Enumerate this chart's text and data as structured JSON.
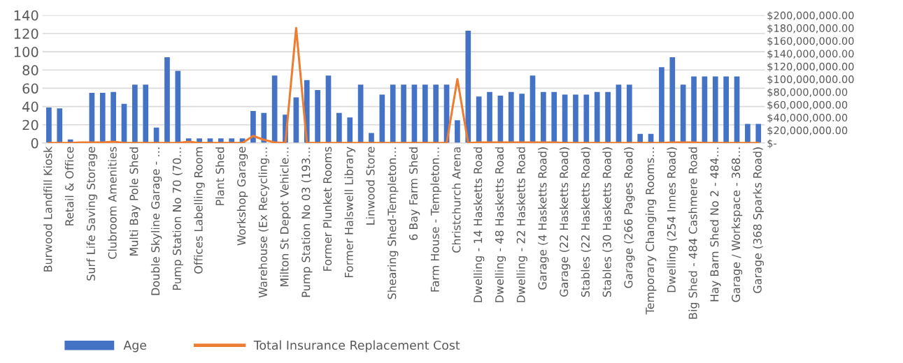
{
  "chart_data": {
    "type": "bar",
    "categories": [
      "Burwood Landfill Kiosk",
      null,
      "Retail & Office",
      null,
      "Surf Life Saving Storage",
      null,
      "Clubroom Amenities",
      null,
      "Multi Bay Pole Shed",
      null,
      "Double Skyline Garage - …",
      null,
      "Pump Station No 70 (70…",
      null,
      "Offices Labelling Room",
      null,
      "Plant Shed",
      null,
      "Workshop Garage",
      null,
      "Warehouse (Ex Recycling…",
      null,
      "Milton St Depot Vehicle…",
      null,
      "Pump Station No 03 (193…",
      null,
      "Former Plunket Rooms",
      null,
      "Former Halswell Library",
      null,
      "Linwood Store",
      null,
      "Shearing Shed-Templeton…",
      null,
      "6 Bay Farm Shed",
      null,
      "Farm House - Templeton…",
      null,
      "Christchurch Arena",
      null,
      "Dwelling - 14 Hasketts Road",
      null,
      "Dwelling - 48 Hasketts Road",
      null,
      "Dwelling - 22 Hasketts Road",
      null,
      "Garage (4 Hasketts Road)",
      null,
      "Garage (22 Hasketts Road)",
      null,
      "Stables (22 Hasketts Road)",
      null,
      "Stables (30 Hasketts Road)",
      null,
      "Garage (266 Pages Road)",
      null,
      "Temporary Changing Rooms…",
      null,
      "Dwelling (254 Innes Road)",
      null,
      "Big Shed - 484 Cashmere Road",
      null,
      "Hay Barn Shed No 2 - 484…",
      null,
      "Garage / Workspace - 368…",
      null,
      "Garage (368 Sparks Road)"
    ],
    "series": [
      {
        "name": "Age",
        "color": "#4472c4",
        "values": [
          39,
          38,
          4,
          null,
          55,
          55,
          56,
          43,
          64,
          64,
          17,
          94,
          79,
          5,
          5,
          5,
          5,
          5,
          5,
          35,
          33,
          74,
          31,
          50,
          69,
          58,
          74,
          33,
          28,
          64,
          11,
          53,
          64,
          64,
          64,
          64,
          64,
          64,
          25,
          123,
          51,
          56,
          52,
          56,
          54,
          74,
          56,
          56,
          53,
          53,
          53,
          56,
          56,
          64,
          64,
          10,
          10,
          83,
          94,
          64,
          73,
          73,
          73,
          73,
          73,
          21,
          21
        ]
      },
      {
        "name": "Total Insurance Replacement Cost",
        "type": "line",
        "axis": "y2",
        "color": "#ed7d31",
        "values": [
          0,
          0,
          0,
          1000000,
          1000000,
          1000000,
          2000000,
          0,
          0,
          0,
          0,
          0,
          0,
          2000000,
          0,
          0,
          0,
          0,
          0,
          11000000,
          5000000,
          1000000,
          0,
          180000000,
          0,
          0,
          0,
          0,
          0,
          0,
          0,
          0,
          0,
          0,
          0,
          0,
          0,
          0,
          100000000,
          0,
          1000000,
          1000000,
          1000000,
          1000000,
          1000000,
          1000000,
          1000000,
          1000000,
          0,
          0,
          0,
          0,
          0,
          0,
          0,
          0,
          0,
          0,
          1000000,
          1000000,
          1000000,
          0,
          0,
          0,
          0,
          0,
          0
        ]
      }
    ],
    "ylim": [
      0,
      140
    ],
    "yticks": [
      0,
      20,
      40,
      60,
      80,
      100,
      120,
      140
    ],
    "y2lim": [
      0,
      200000000
    ],
    "y2ticks": [
      {
        "value": 0,
        "label": "$-"
      },
      {
        "value": 20000000,
        "label": "$20,000,000.00"
      },
      {
        "value": 40000000,
        "label": "$40,000,000.00"
      },
      {
        "value": 60000000,
        "label": "$60,000,000.00"
      },
      {
        "value": 80000000,
        "label": "$80,000,000.00"
      },
      {
        "value": 100000000,
        "label": "$100,000,000.00"
      },
      {
        "value": 120000000,
        "label": "$120,000,000.00"
      },
      {
        "value": 140000000,
        "label": "$140,000,000.00"
      },
      {
        "value": 160000000,
        "label": "$160,000,000.00"
      },
      {
        "value": 180000000,
        "label": "$180,000,000.00"
      },
      {
        "value": 200000000,
        "label": "$200,000,000.00"
      }
    ],
    "grid": "y",
    "legend": "bottom left"
  }
}
